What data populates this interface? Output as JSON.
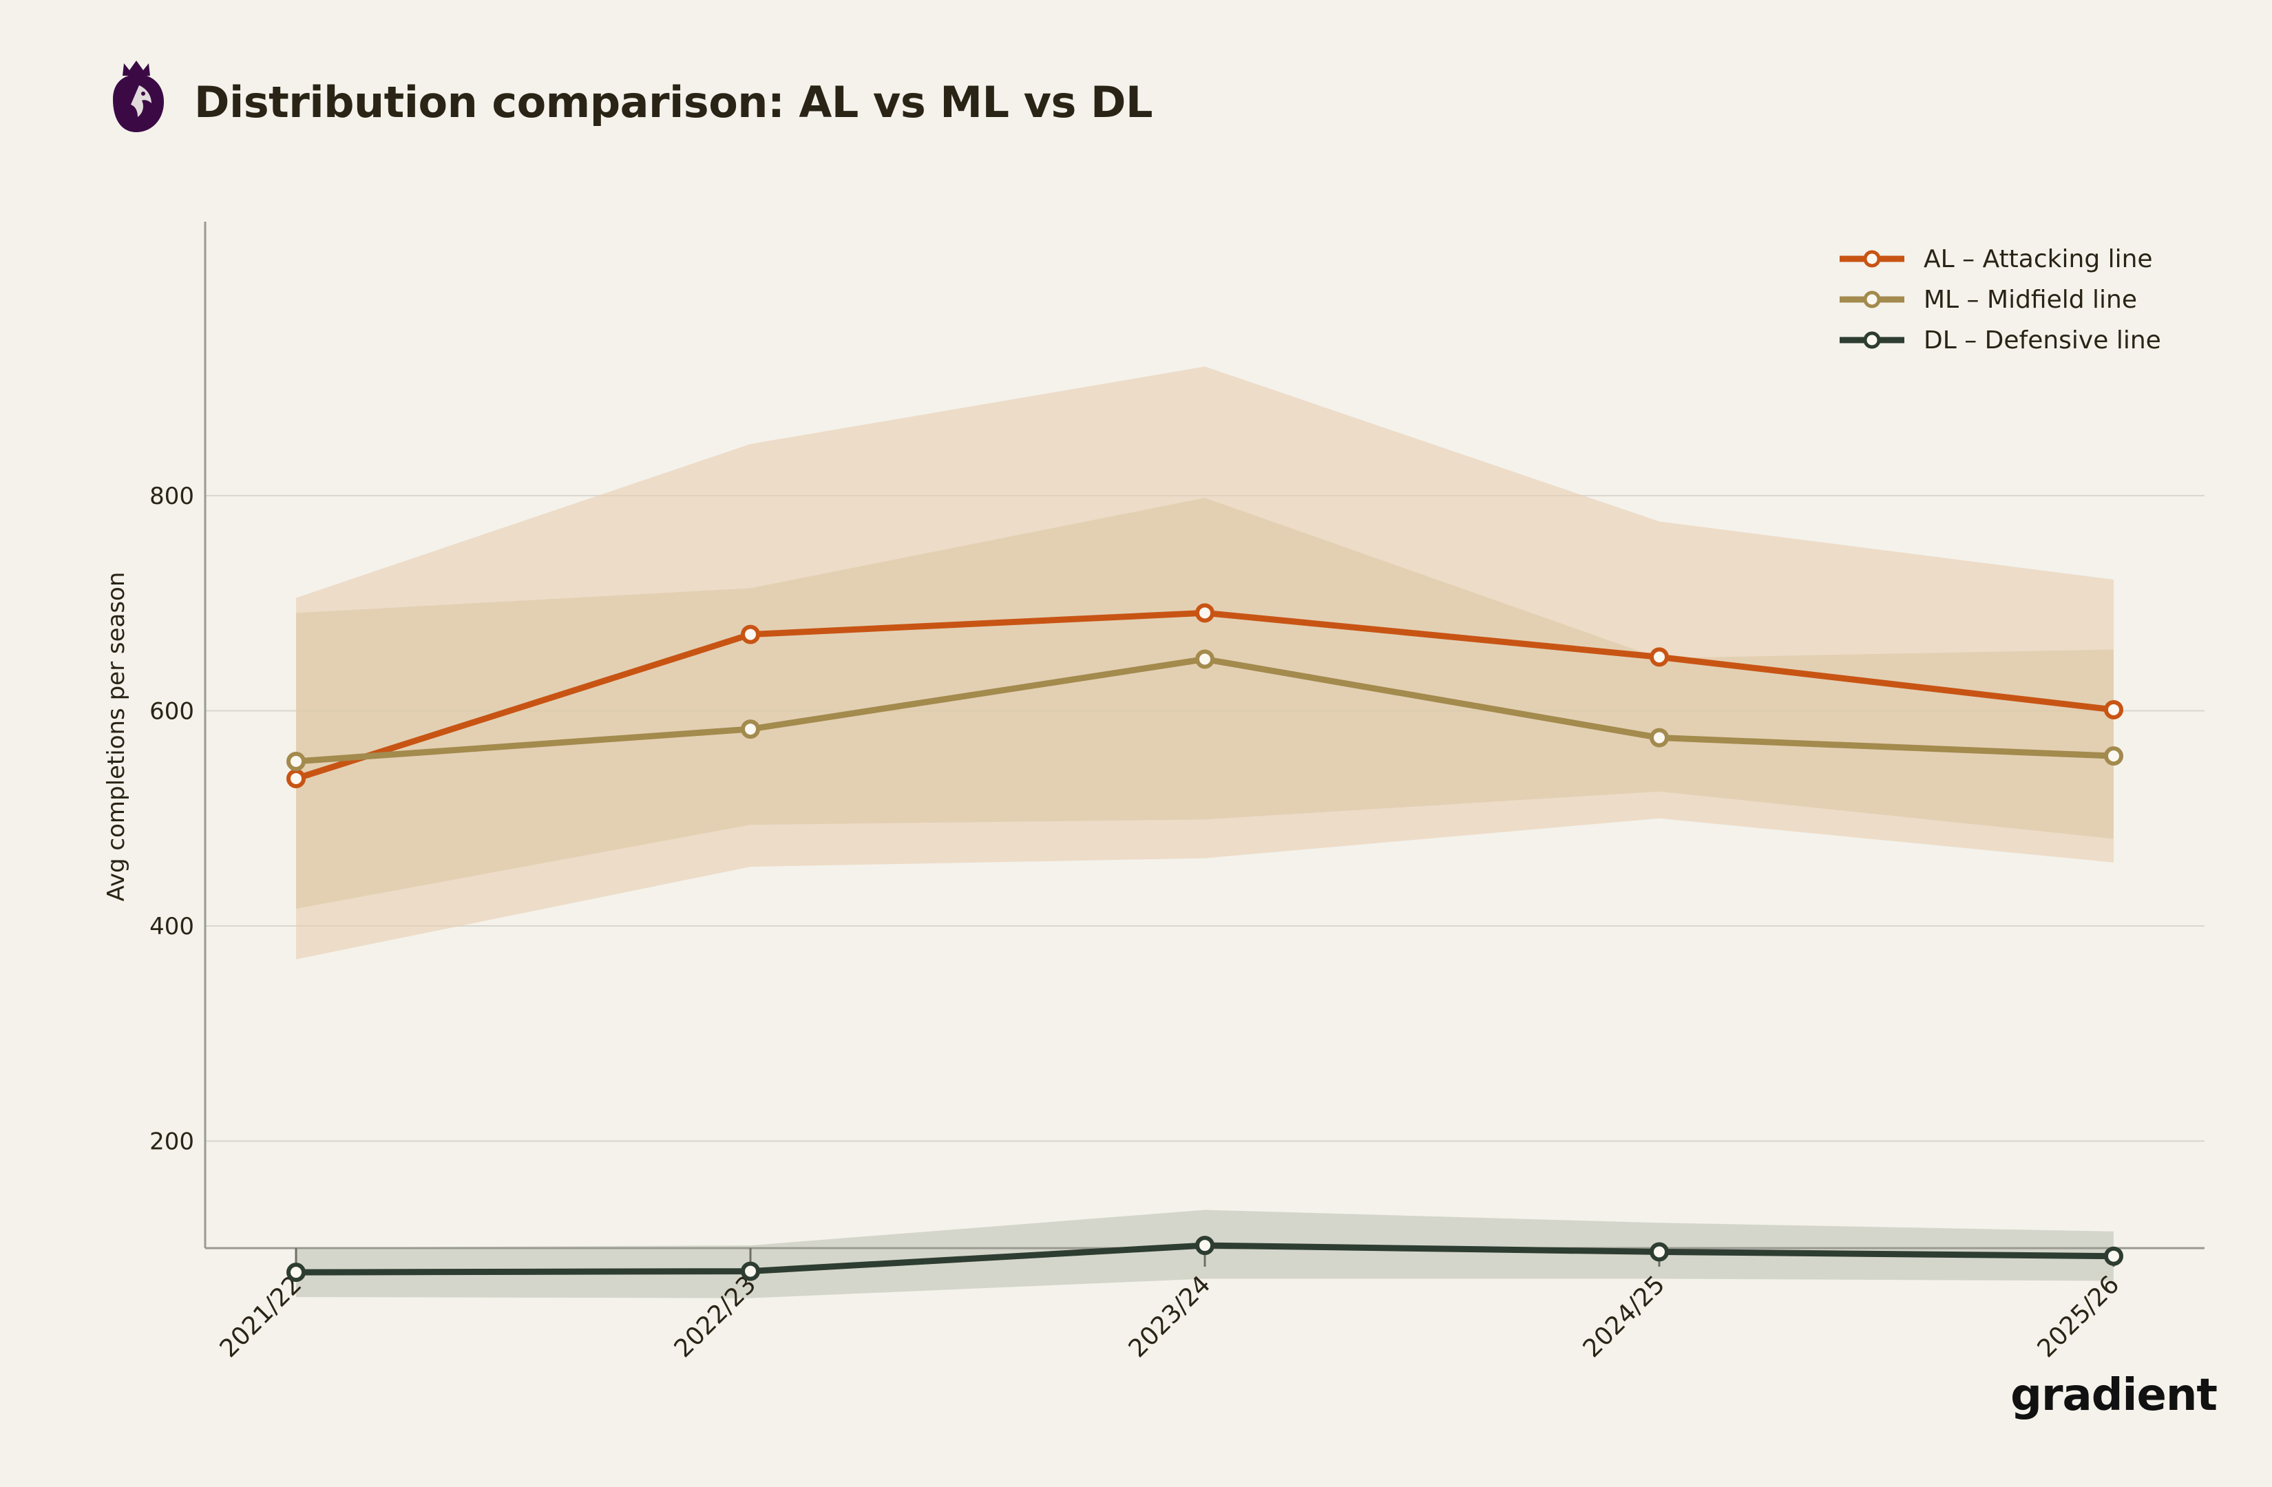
{
  "header": {
    "title": "Distribution comparison: AL vs ML vs DL",
    "logo_icon": "premier-league-lion-logo"
  },
  "brand": {
    "logo_text": "gradient"
  },
  "chart_data": {
    "type": "line",
    "title": "Distribution comparison: AL vs ML vs DL",
    "xlabel": "",
    "ylabel": "Avg completions per season",
    "categories": [
      "2021/22",
      "2022/23",
      "2023/24",
      "2024/25",
      "2025/26"
    ],
    "ylim": [
      0,
      960
    ],
    "yticks": [
      200,
      400,
      600,
      800
    ],
    "grid": "horizontal",
    "legend_position": "top-right",
    "series": [
      {
        "name": "AL – Attacking line",
        "color": "#c85414",
        "band_color": "#e8cdb1",
        "values": [
          537,
          671,
          691,
          650,
          601
        ],
        "band_low": [
          369,
          455,
          463,
          500,
          459
        ],
        "band_high": [
          705,
          848,
          920,
          776,
          722
        ]
      },
      {
        "name": "ML – Midfield line",
        "color": "#a38a4d",
        "band_color": "#dcc8a5",
        "values": [
          553,
          583,
          648,
          575,
          558
        ],
        "band_low": [
          416,
          494,
          499,
          525,
          481
        ],
        "band_high": [
          691,
          714,
          798,
          649,
          657
        ]
      },
      {
        "name": "DL – Defensive line",
        "color": "#2e3d31",
        "band_color": "#cfd1c6",
        "values": [
          78,
          79,
          103,
          97,
          93
        ],
        "band_low": [
          55,
          54,
          72,
          72,
          70
        ],
        "band_high": [
          101,
          103,
          136,
          124,
          116
        ]
      }
    ]
  }
}
